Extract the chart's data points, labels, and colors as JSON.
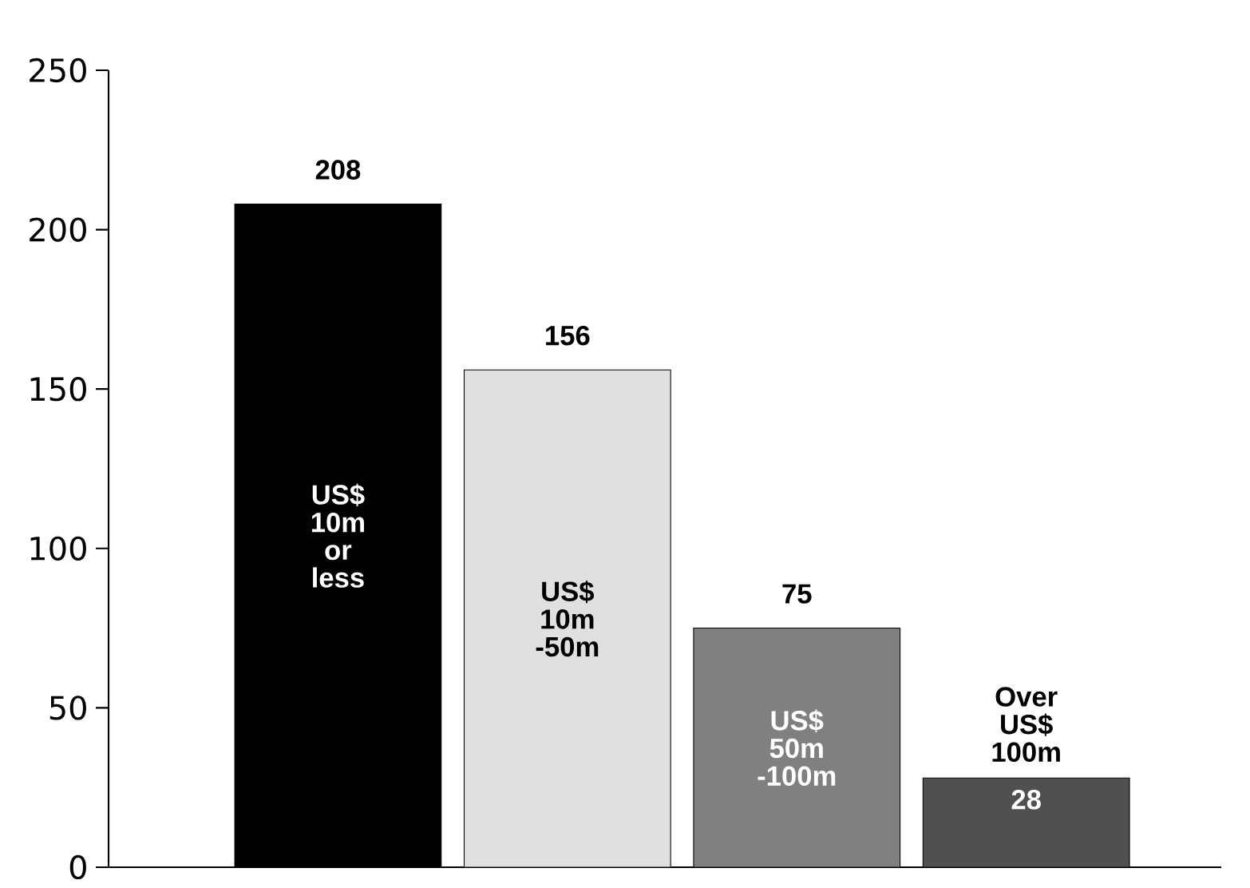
{
  "chart_data": {
    "type": "bar",
    "categories": [
      "US$ 10m or less",
      "US$ 10m -50m",
      "US$ 50m -100m",
      "Over US$ 100m"
    ],
    "values": [
      208,
      156,
      75,
      28
    ],
    "colors": [
      "#000000",
      "#e0e0e0",
      "#808080",
      "#505050"
    ],
    "ylim": [
      0,
      250
    ],
    "yticks": [
      0,
      50,
      100,
      150,
      200,
      250
    ],
    "data_labels": true,
    "grid": false,
    "legend": false
  }
}
